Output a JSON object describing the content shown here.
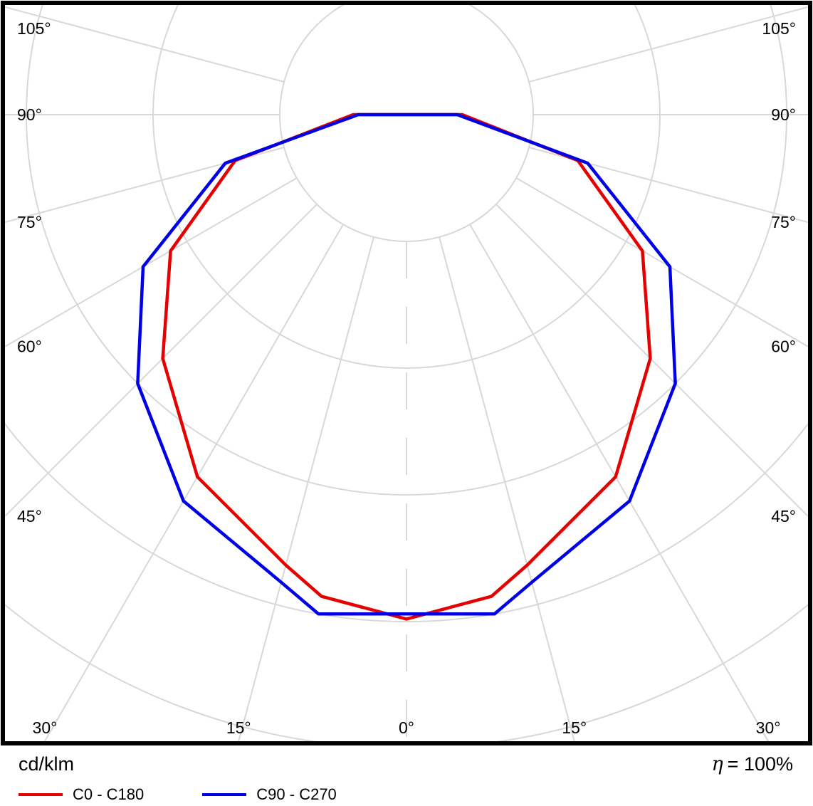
{
  "footer": {
    "unit": "cd/klm",
    "eta_symbol": "η",
    "eta_text": "= 100%"
  },
  "legend": [
    {
      "label": "C0 - C180",
      "color": "#e60000"
    },
    {
      "label": "C90 - C270",
      "color": "#0000e6"
    }
  ],
  "chart_data": {
    "type": "line",
    "subtype": "polar-photometric-distribution",
    "units": "cd/klm",
    "title": "",
    "grid_color": "#d8d8d8",
    "ring_step_cd_klm": 100,
    "rings": [
      100,
      200,
      300,
      400,
      500
    ],
    "angle_ticks": [
      {
        "deg": 0,
        "label": "0°"
      },
      {
        "deg": 15,
        "label": "15°"
      },
      {
        "deg": 30,
        "label": "30°"
      },
      {
        "deg": 45,
        "label": "45°"
      },
      {
        "deg": 60,
        "label": "60°"
      },
      {
        "deg": 75,
        "label": "75°"
      },
      {
        "deg": 90,
        "label": "90°"
      },
      {
        "deg": 105,
        "label": "105°"
      }
    ],
    "series": [
      {
        "name": "C0 - C180",
        "color": "#e60000",
        "points": [
          [
            -90,
            42
          ],
          [
            -75,
            140
          ],
          [
            -60,
            215
          ],
          [
            -45,
            272
          ],
          [
            -30,
            330
          ],
          [
            -15,
            368
          ],
          [
            -10,
            386
          ],
          [
            0,
            398
          ],
          [
            10,
            386
          ],
          [
            15,
            368
          ],
          [
            30,
            330
          ],
          [
            45,
            272
          ],
          [
            60,
            215
          ],
          [
            75,
            140
          ],
          [
            90,
            44
          ]
        ]
      },
      {
        "name": "C90 - C270",
        "color": "#0000e6",
        "points": [
          [
            -90,
            38
          ],
          [
            -75,
            148
          ],
          [
            -60,
            240
          ],
          [
            -45,
            300
          ],
          [
            -30,
            352
          ],
          [
            -15,
            382
          ],
          [
            -10,
            400
          ],
          [
            0,
            394
          ],
          [
            10,
            400
          ],
          [
            15,
            382
          ],
          [
            30,
            352
          ],
          [
            45,
            300
          ],
          [
            60,
            240
          ],
          [
            75,
            148
          ],
          [
            90,
            40
          ]
        ]
      }
    ]
  }
}
